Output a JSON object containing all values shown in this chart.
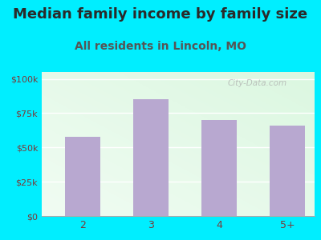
{
  "title": "Median family income by family size",
  "subtitle": "All residents in Lincoln, MO",
  "categories": [
    "2",
    "3",
    "4",
    "5+"
  ],
  "values": [
    58000,
    85000,
    70000,
    66000
  ],
  "bar_color": "#b8a8d0",
  "title_fontsize": 13,
  "subtitle_fontsize": 10,
  "yticks": [
    0,
    25000,
    50000,
    75000,
    100000
  ],
  "ytick_labels": [
    "$0",
    "$25k",
    "$50k",
    "$75k",
    "$100k"
  ],
  "ylim": [
    0,
    105000
  ],
  "bg_outer": "#00eeff",
  "title_color": "#2a2a2a",
  "subtitle_color": "#555555",
  "tick_color": "#7a3a3a",
  "watermark": "City-Data.com",
  "grid_color": "#ffffff",
  "spine_color": "#aaaaaa"
}
